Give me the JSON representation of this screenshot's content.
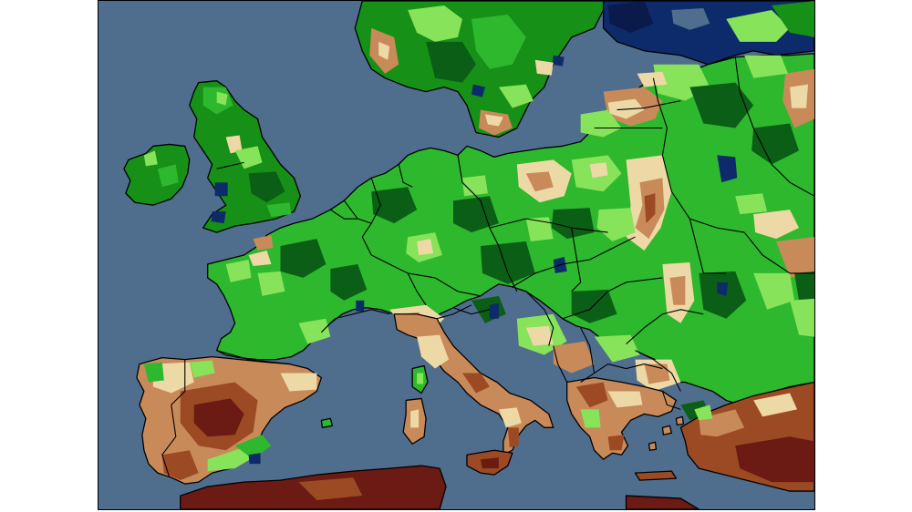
{
  "map": {
    "type": "anomaly-choropleth",
    "region": "Europe",
    "sea_color": "#4f6d8c",
    "palette": {
      "very_dry": "#6b1a14",
      "dry": "#9c4a23",
      "moderately_dry": "#c98a5a",
      "slightly_dry": "#edd9a6",
      "slightly_wet": "#86e35a",
      "wet": "#2db82d",
      "moderately_wet": "#169016",
      "very_wet": "#0b5e16",
      "extremely_wet": "#0d2a6b",
      "extreme_edge": "#0a1a4a"
    }
  }
}
